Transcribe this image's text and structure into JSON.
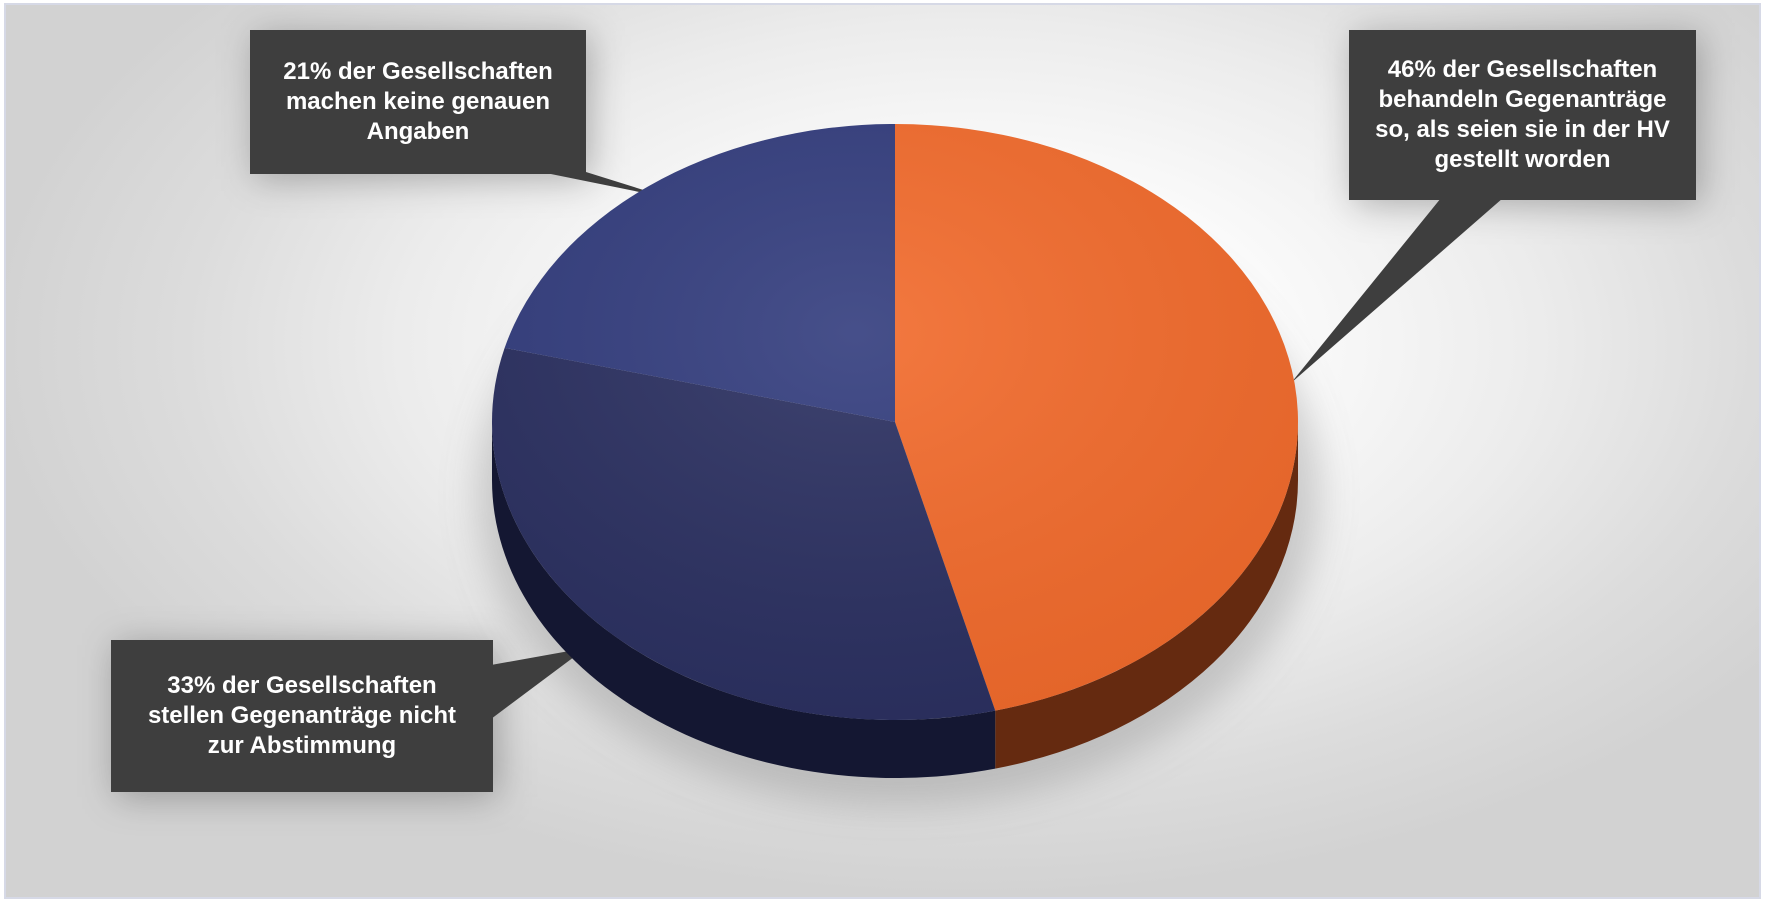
{
  "chart_data": {
    "type": "pie",
    "title": "",
    "legend": "none",
    "slices": [
      {
        "value": 46,
        "color": "#f26a2b",
        "side_color": "#652a10",
        "label": "46% der Gesellschaften\nbehandeln Gegenanträge\nso, als seien sie in der HV\ngestellt worden"
      },
      {
        "value": 33,
        "color": "#2a2f60",
        "side_color": "#141732",
        "label": "33% der Gesellschaften\nstellen Gegenanträge nicht\nzur Abstimmung"
      },
      {
        "value": 21,
        "color": "#323c7d",
        "side_color": "#1a1f45",
        "label": "21% der Gesellschaften\nmachen keine genauen\nAngaben"
      }
    ],
    "callout_color": "#3e3e3e"
  }
}
